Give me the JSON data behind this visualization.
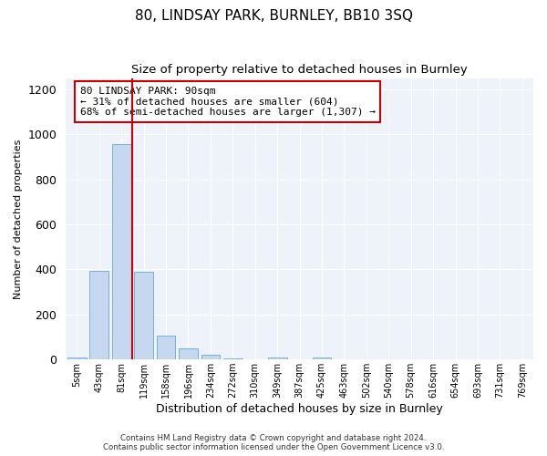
{
  "title": "80, LINDSAY PARK, BURNLEY, BB10 3SQ",
  "subtitle": "Size of property relative to detached houses in Burnley",
  "xlabel": "Distribution of detached houses by size in Burnley",
  "ylabel": "Number of detached properties",
  "bar_labels": [
    "5sqm",
    "43sqm",
    "81sqm",
    "119sqm",
    "158sqm",
    "196sqm",
    "234sqm",
    "272sqm",
    "310sqm",
    "349sqm",
    "387sqm",
    "425sqm",
    "463sqm",
    "502sqm",
    "540sqm",
    "578sqm",
    "616sqm",
    "654sqm",
    "693sqm",
    "731sqm",
    "769sqm"
  ],
  "bar_values": [
    10,
    395,
    955,
    390,
    107,
    50,
    22,
    5,
    0,
    10,
    0,
    10,
    0,
    0,
    0,
    0,
    0,
    0,
    0,
    0,
    0
  ],
  "bar_color": "#c5d8f0",
  "bar_edge_color": "#7aafd4",
  "vline_x": 2.5,
  "vline_color": "#cc0000",
  "annotation_title": "80 LINDSAY PARK: 90sqm",
  "annotation_line1": "← 31% of detached houses are smaller (604)",
  "annotation_line2": "68% of semi-detached houses are larger (1,307) →",
  "annotation_box_color": "#cc0000",
  "ylim": [
    0,
    1250
  ],
  "yticks": [
    0,
    200,
    400,
    600,
    800,
    1000,
    1200
  ],
  "footer_line1": "Contains HM Land Registry data © Crown copyright and database right 2024.",
  "footer_line2": "Contains public sector information licensed under the Open Government Licence v3.0.",
  "bg_color": "#ffffff",
  "plot_bg_color": "#eef2fa"
}
